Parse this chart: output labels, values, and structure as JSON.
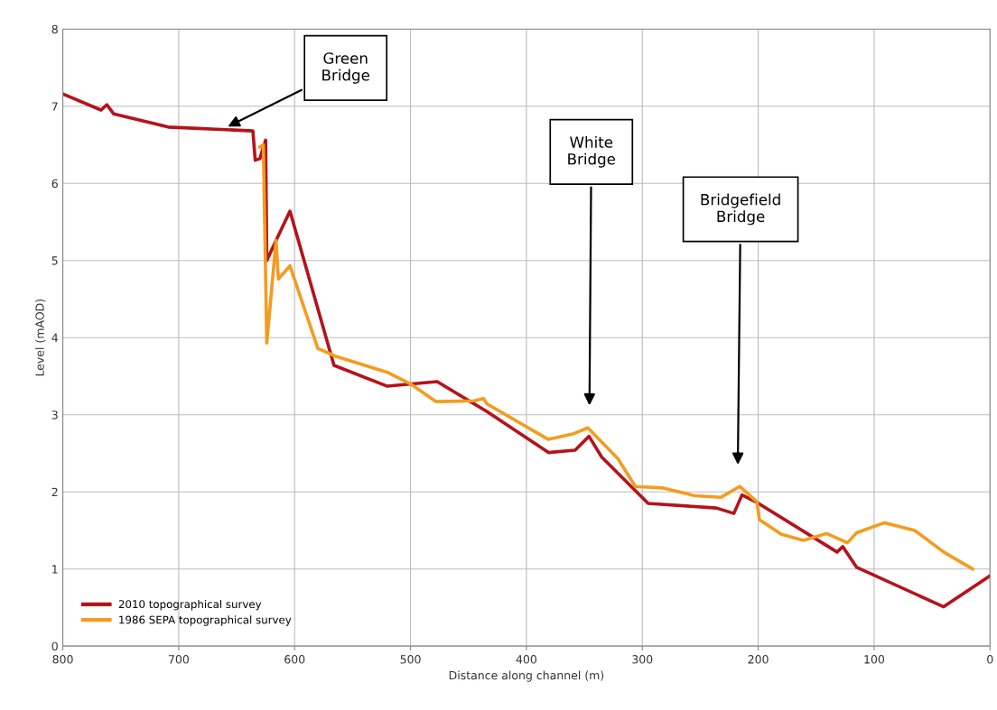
{
  "chart_data": {
    "type": "line",
    "xlabel": "Distance along channel (m)",
    "ylabel": "Level (mAOD)",
    "xlim": [
      800,
      0
    ],
    "xticks": [
      800,
      700,
      600,
      500,
      400,
      300,
      200,
      100,
      0
    ],
    "ylim": [
      0,
      8
    ],
    "yticks": [
      0,
      1,
      2,
      3,
      4,
      5,
      6,
      7,
      8
    ],
    "grid": true,
    "legend": "bottom left",
    "marker": "none",
    "line_style": "solid",
    "series": [
      {
        "name": "2010 topographical survey",
        "color": "#b5121b",
        "x": [
          800,
          767,
          762,
          756,
          709,
          636,
          634,
          630,
          625,
          624,
          616,
          604,
          566,
          520,
          477,
          434,
          381,
          358,
          346,
          335,
          295,
          236,
          221,
          214,
          202,
          132,
          127,
          115,
          40,
          0
        ],
        "values": [
          7.16,
          6.95,
          7.02,
          6.9,
          6.73,
          6.68,
          6.3,
          6.32,
          6.56,
          5.0,
          5.26,
          5.64,
          3.64,
          3.37,
          3.43,
          3.04,
          2.51,
          2.54,
          2.72,
          2.45,
          1.85,
          1.79,
          1.72,
          1.96,
          1.87,
          1.22,
          1.29,
          1.02,
          0.51,
          0.91
        ]
      },
      {
        "name": "1986 SEPA topographical survey",
        "color": "#f39c1f",
        "x": [
          630,
          627,
          624,
          616,
          614,
          604,
          580,
          565,
          520,
          500,
          478,
          445,
          437,
          434,
          381,
          360,
          347,
          321,
          306,
          282,
          255,
          232,
          216,
          201,
          199,
          180,
          161,
          141,
          123,
          115,
          91,
          65,
          40,
          15
        ],
        "values": [
          6.47,
          6.5,
          3.93,
          5.26,
          4.76,
          4.93,
          3.86,
          3.76,
          3.55,
          3.4,
          3.17,
          3.18,
          3.21,
          3.14,
          2.68,
          2.75,
          2.83,
          2.43,
          2.07,
          2.05,
          1.95,
          1.93,
          2.07,
          1.87,
          1.64,
          1.45,
          1.37,
          1.46,
          1.34,
          1.47,
          1.6,
          1.5,
          1.22,
          1.0
        ]
      }
    ],
    "annotations": [
      "Green\nBridge",
      "White\nBridge",
      "Bridgefield\nBridge"
    ]
  }
}
